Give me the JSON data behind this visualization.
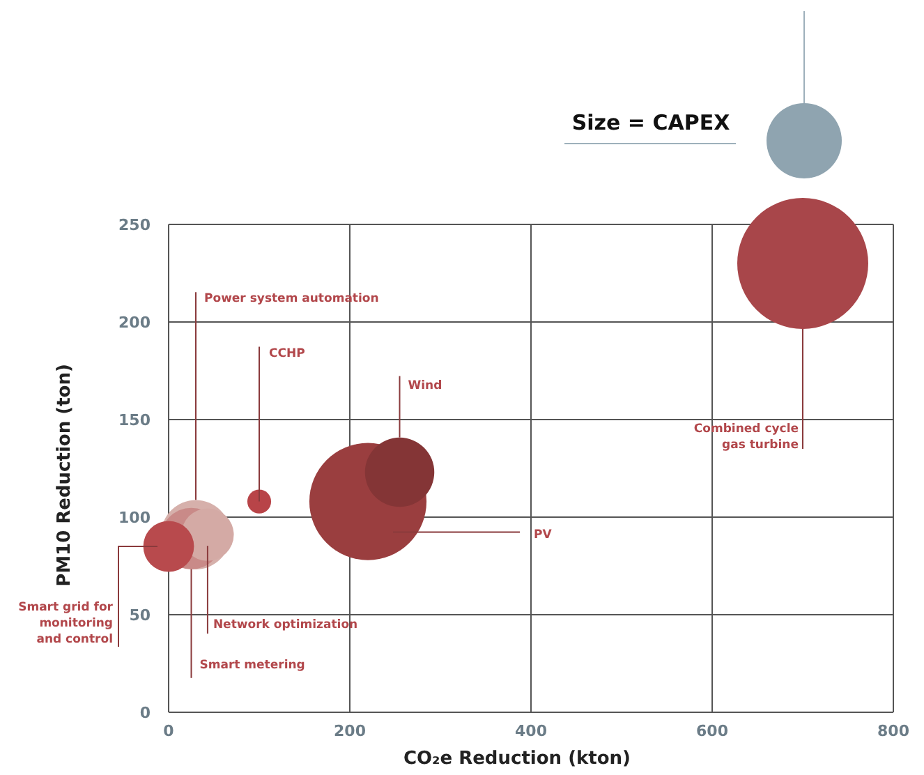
{
  "chart_data": {
    "type": "bubble",
    "xlabel": "CO₂e Reduction (kton)",
    "ylabel": "PM10 Reduction (ton)",
    "legend_title": "Size = CAPEX",
    "xlim": [
      0,
      800
    ],
    "xticks": [
      0,
      200,
      400,
      600,
      800
    ],
    "ylim": [
      0,
      250
    ],
    "yticks": [
      0,
      50,
      100,
      150,
      200,
      250
    ],
    "grid": true,
    "series": [
      {
        "name": "Combined cycle\ngas turbine",
        "color": "#a8464a",
        "x": [
          700
        ],
        "values": [
          230
        ],
        "sizes": [
          1
        ]
      },
      {
        "name": "PV",
        "color": "#9a3e3f",
        "x": [
          220
        ],
        "values": [
          108
        ],
        "sizes": [
          0.8
        ]
      },
      {
        "name": "Wind",
        "color": "#843536",
        "x": [
          255
        ],
        "values": [
          123
        ],
        "sizes": [
          0.28
        ]
      },
      {
        "name": "CCHP",
        "color": "#b84448",
        "x": [
          100
        ],
        "values": [
          108
        ],
        "sizes": [
          0.033
        ]
      },
      {
        "name": "Power system automation",
        "color": "#d6b0ab",
        "x": [
          30
        ],
        "values": [
          91
        ],
        "sizes": [
          0.28
        ]
      },
      {
        "name": "Smart metering",
        "color": "#c98a88",
        "x": [
          25
        ],
        "values": [
          89
        ],
        "sizes": [
          0.22
        ]
      },
      {
        "name": "Network optimization",
        "color": "#d4aaa5",
        "x": [
          43
        ],
        "values": [
          91
        ],
        "sizes": [
          0.16
        ]
      },
      {
        "name": "Smart grid for\nmonitoring\nand control",
        "color": "#b84a4d",
        "x": [
          0
        ],
        "values": [
          85
        ],
        "sizes": [
          0.15
        ]
      }
    ]
  }
}
